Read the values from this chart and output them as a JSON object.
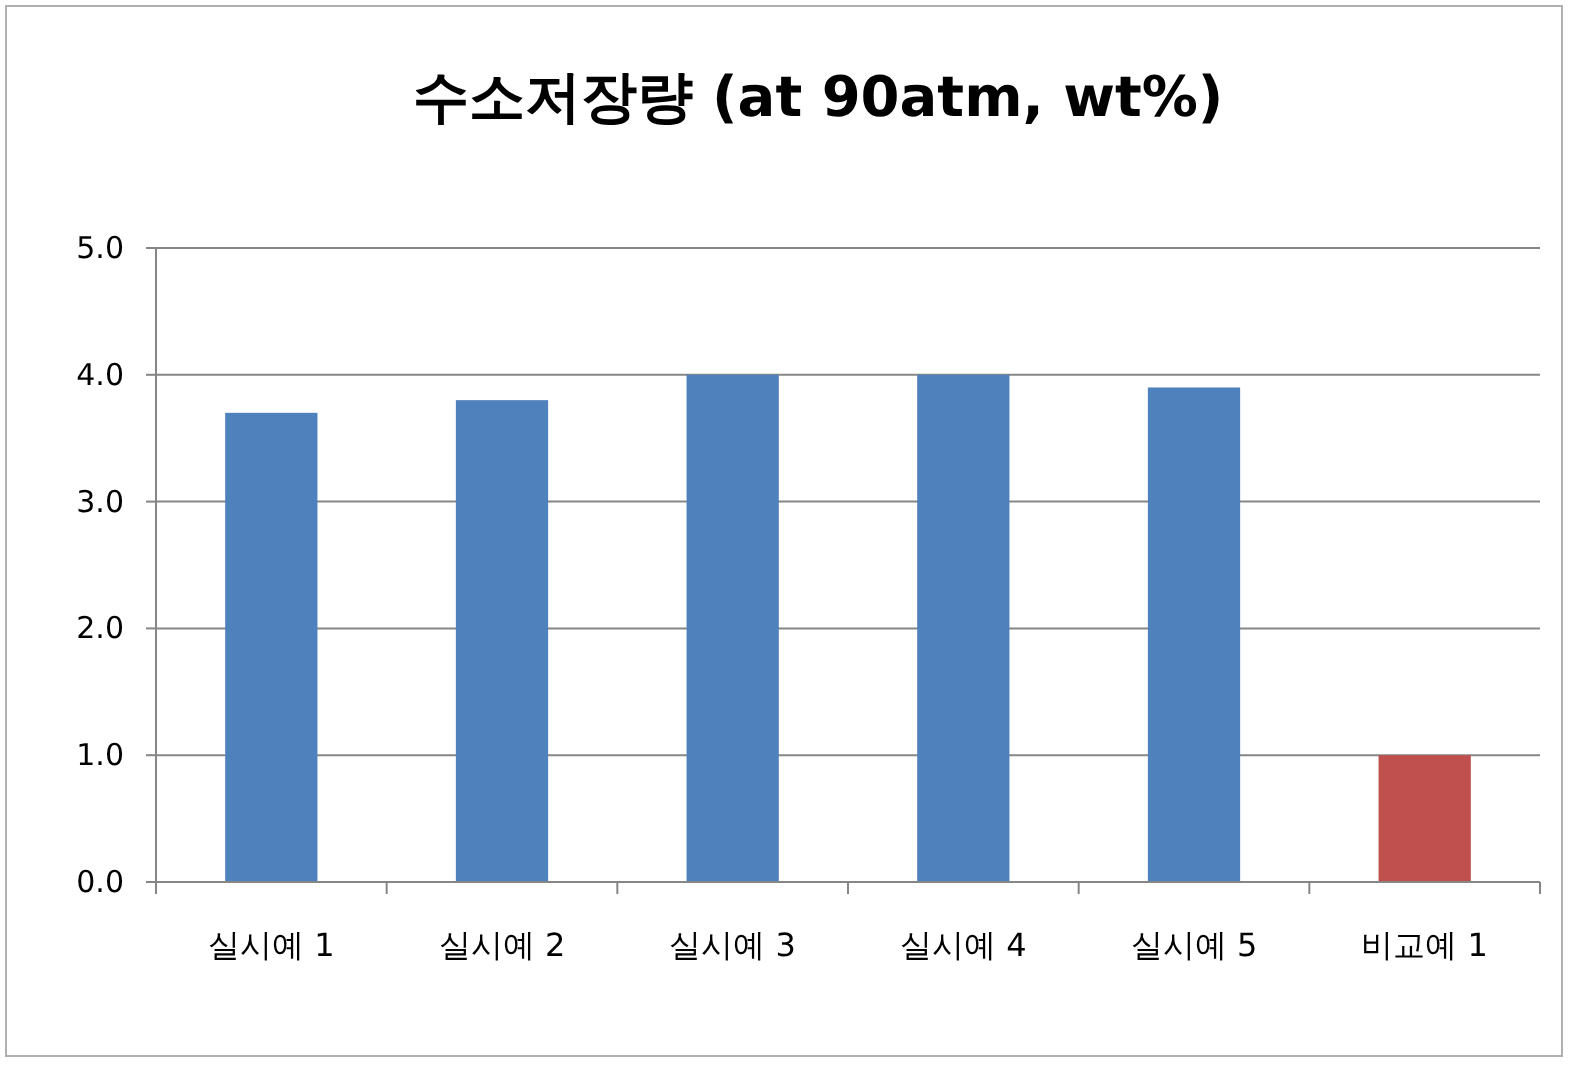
{
  "chart_data": {
    "type": "bar",
    "title": "수소저장량 (at 90atm, wt%)",
    "categories": [
      "실시예 1",
      "실시예 2",
      "실시예 3",
      "실시예 4",
      "실시예 5",
      "비교예 1"
    ],
    "values": [
      3.7,
      3.8,
      4.0,
      4.0,
      3.9,
      1.0
    ],
    "colors": [
      "#4f81bd",
      "#4f81bd",
      "#4f81bd",
      "#4f81bd",
      "#4f81bd",
      "#c0504d"
    ],
    "ylim": [
      0,
      5
    ],
    "yticks": [
      {
        "value": 0,
        "label": "0.0"
      },
      {
        "value": 1,
        "label": "1.0"
      },
      {
        "value": 2,
        "label": "2.0"
      },
      {
        "value": 3,
        "label": "3.0"
      },
      {
        "value": 4,
        "label": "4.0"
      },
      {
        "value": 5,
        "label": "5.0"
      }
    ],
    "grid": "y"
  }
}
